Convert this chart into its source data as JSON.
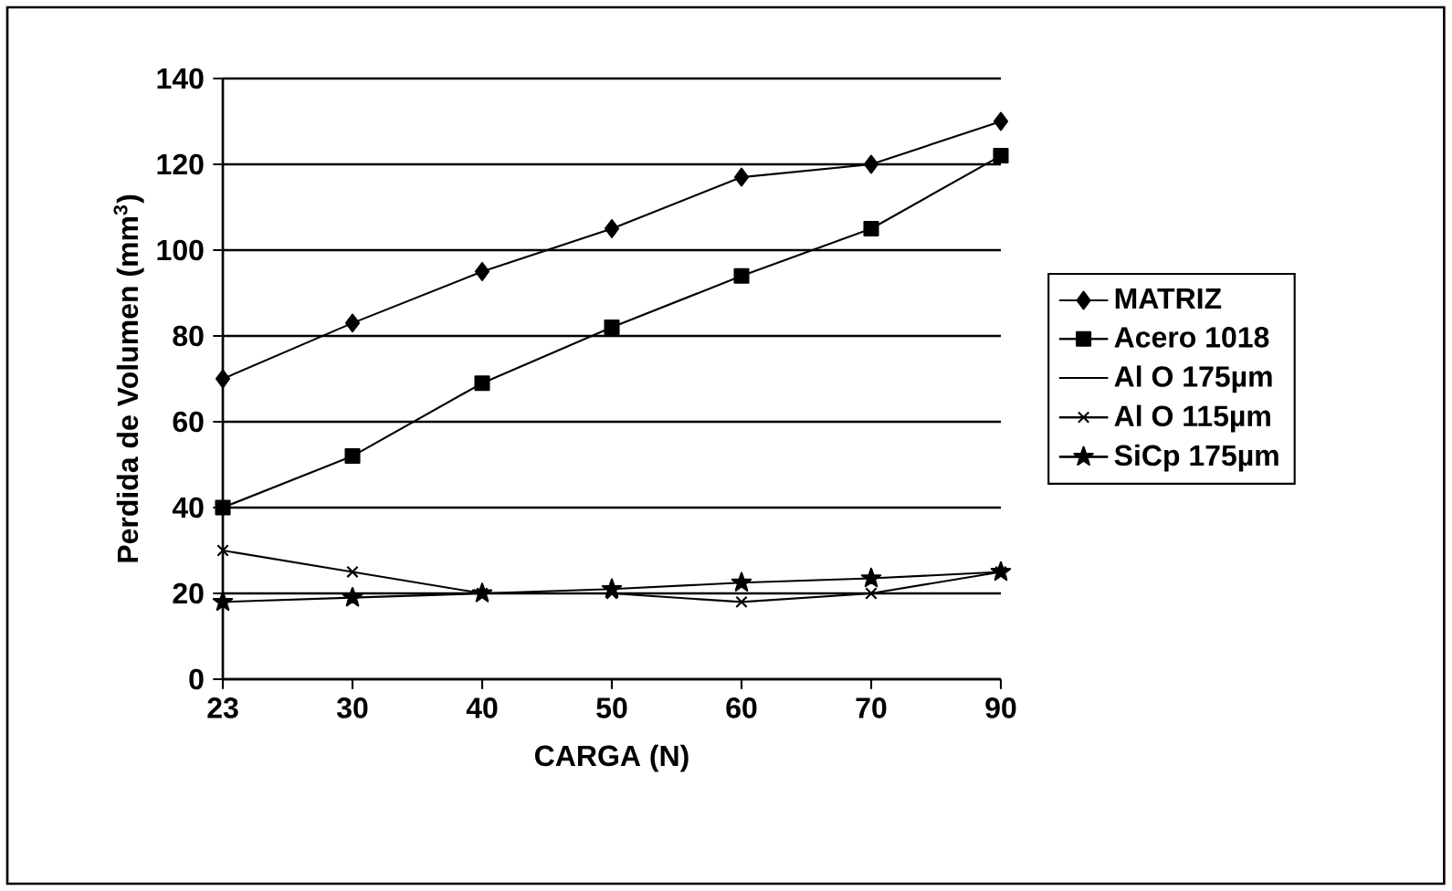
{
  "chart_data": {
    "type": "line",
    "xlabel": "CARGA (N)",
    "ylabel": "Perdida de Volumen (mm$^{3}$)",
    "categories": [
      "23",
      "30",
      "40",
      "50",
      "60",
      "70",
      "90"
    ],
    "ylim": [
      0,
      140
    ],
    "yticks": [
      0,
      20,
      40,
      60,
      80,
      100,
      120,
      140
    ],
    "grid": "y",
    "legend": "right",
    "series": [
      {
        "name": "MATRIZ",
        "color": "#000000",
        "marker": "diamond",
        "values": [
          70,
          83,
          95,
          105,
          117,
          120,
          130
        ]
      },
      {
        "name": "Acero 1018",
        "color": "#000000",
        "marker": "square",
        "values": [
          40,
          52,
          69,
          82,
          94,
          105,
          122
        ]
      },
      {
        "name": "Al O 175µm",
        "color": "#000000",
        "marker": "none",
        "values": [
          null,
          null,
          null,
          null,
          null,
          null,
          null
        ]
      },
      {
        "name": "Al O 115µm",
        "color": "#000000",
        "marker": "cross",
        "values": [
          30,
          25,
          20,
          20,
          18,
          20,
          25
        ]
      },
      {
        "name": "SiCp 175µm",
        "color": "#000000",
        "marker": "star",
        "values": [
          18,
          19,
          20,
          21,
          22.5,
          23.5,
          25
        ]
      }
    ]
  }
}
